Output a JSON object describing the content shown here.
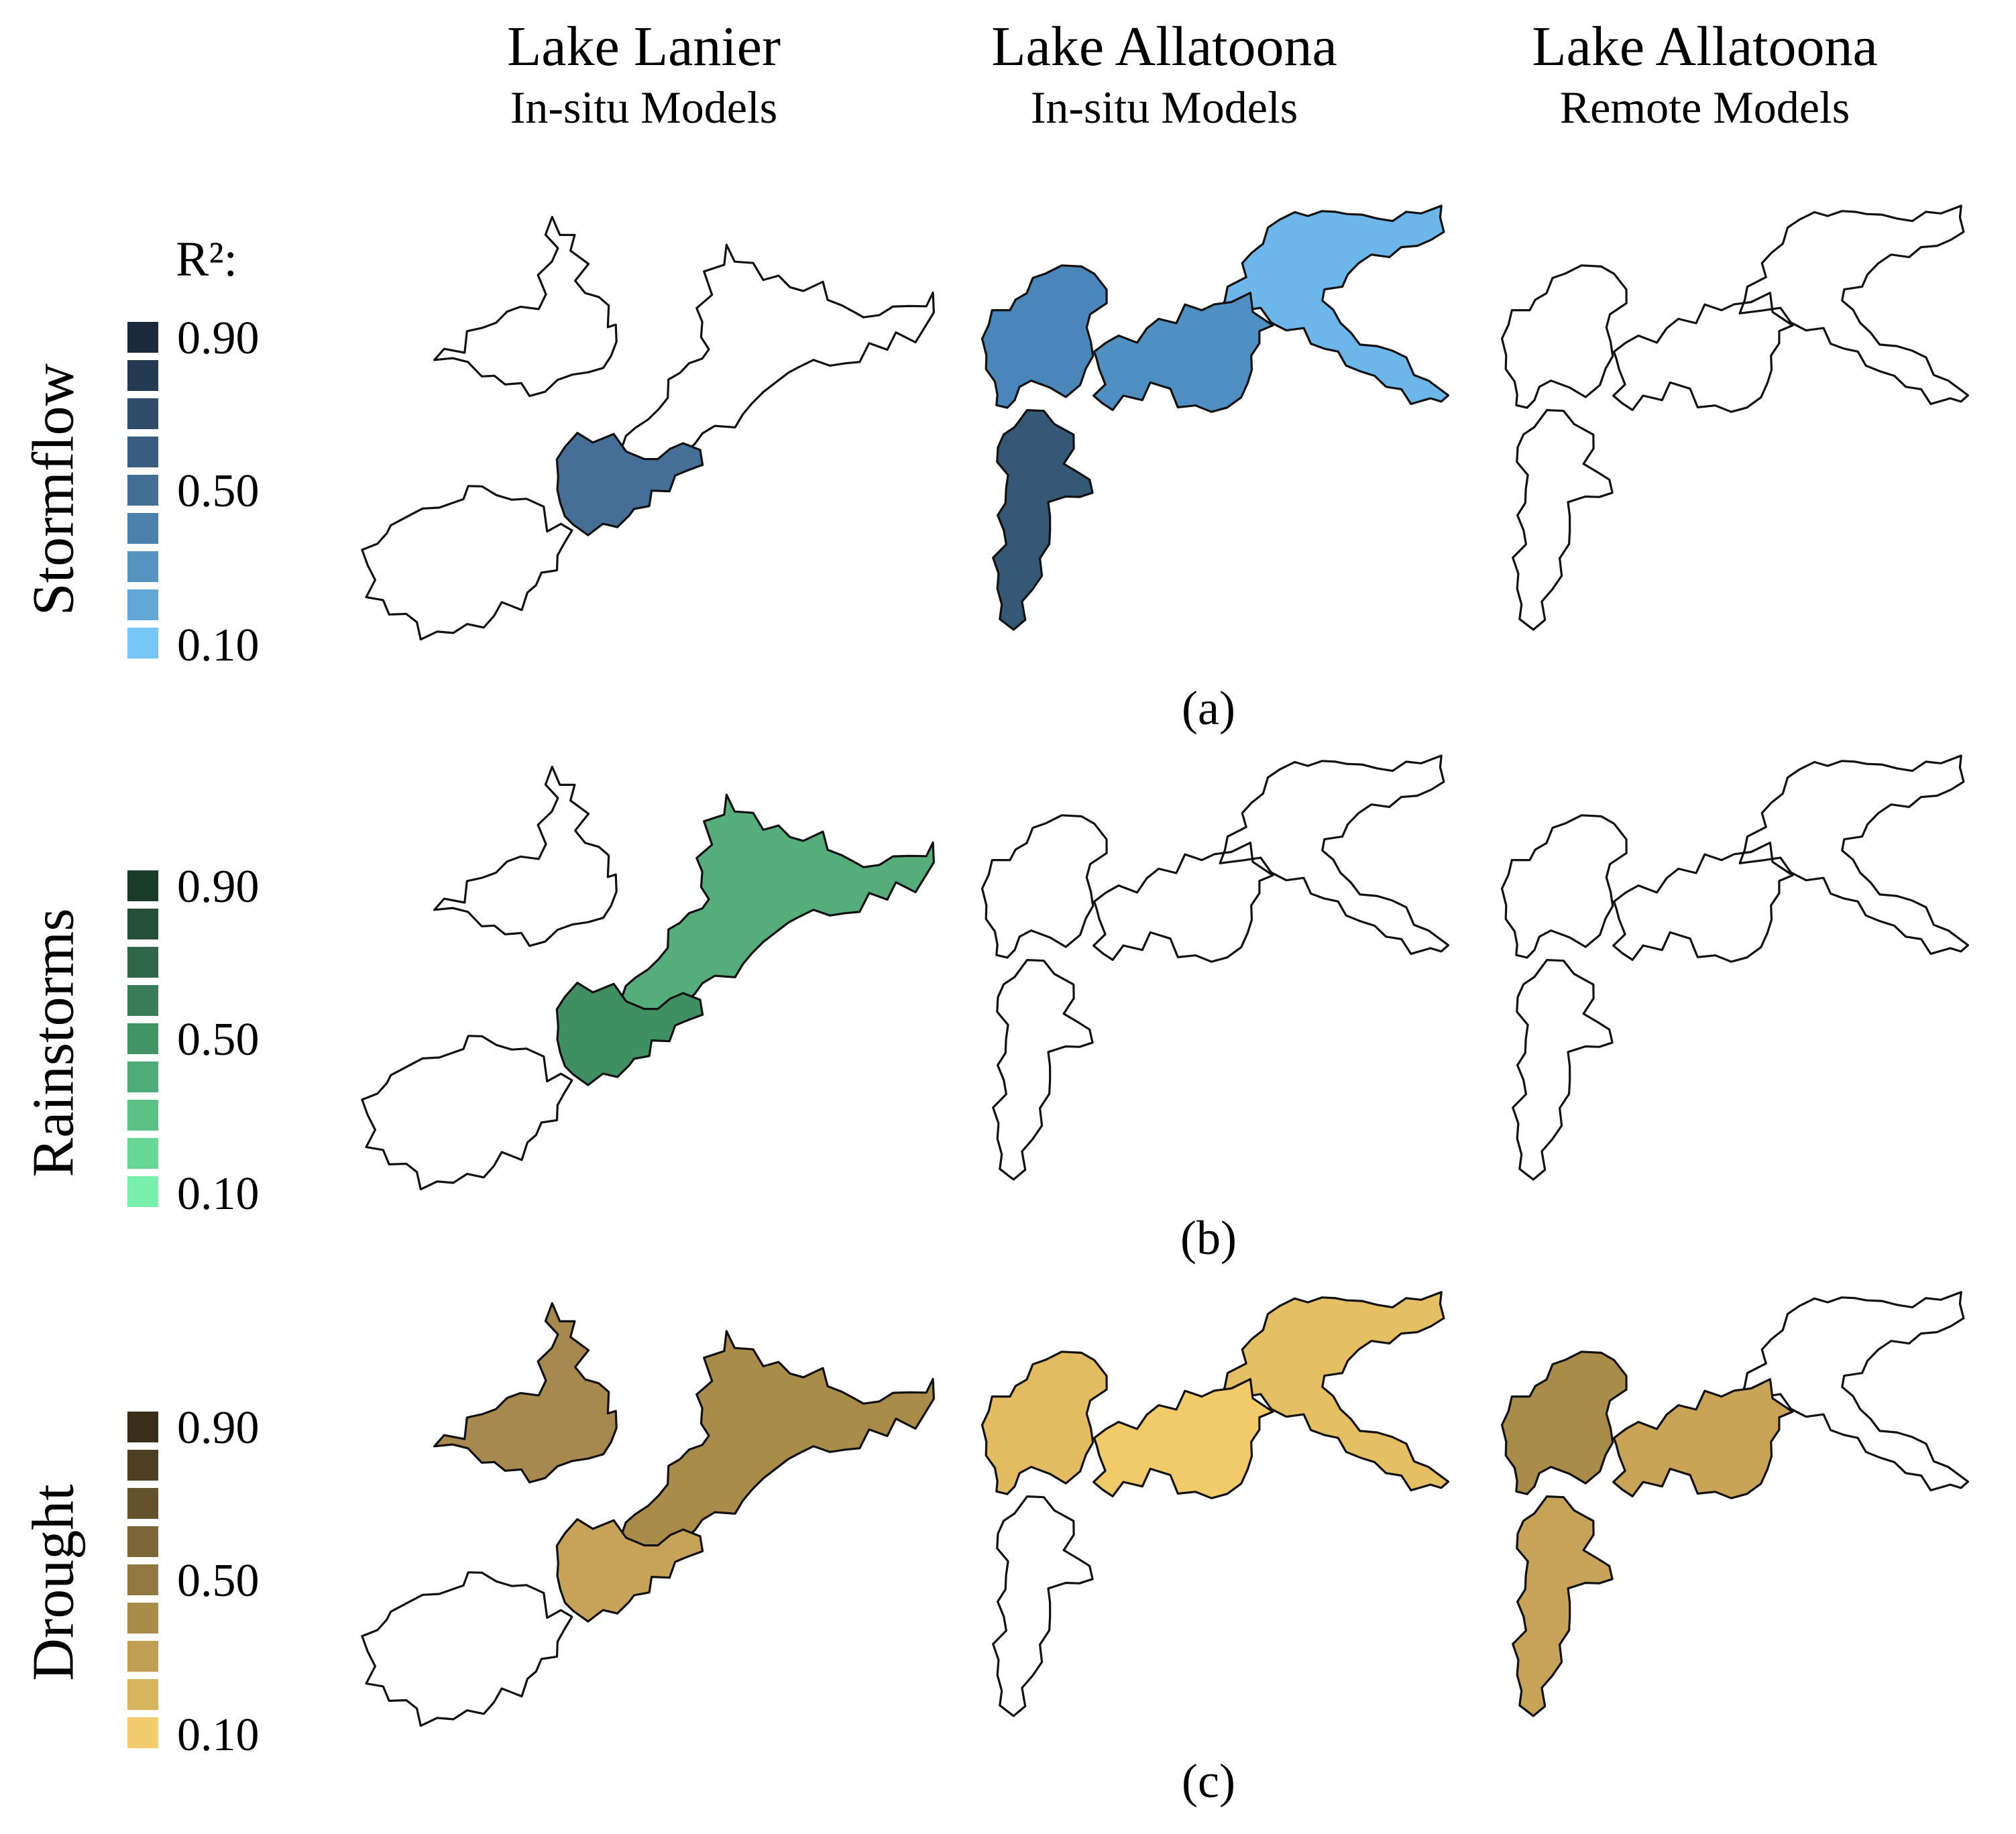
{
  "columns": [
    {
      "title": "Lake Lanier",
      "subtitle": "In-situ Models"
    },
    {
      "title": "Lake Allatoona",
      "subtitle": "In-situ Models"
    },
    {
      "title": "Lake Allatoona",
      "subtitle": "Remote Models"
    }
  ],
  "r2_label": "R²:",
  "rows": [
    {
      "label": "Stormflow",
      "panel_label": "(a)",
      "palette": [
        "#1b2a3a",
        "#243a52",
        "#2e4b69",
        "#385d80",
        "#426f96",
        "#4b81ab",
        "#5693c0",
        "#62a7d6",
        "#77c6f5"
      ],
      "ticks": [
        "0.90",
        "0.50",
        "0.10"
      ],
      "fills": {
        "lanier": {
          "north": "none",
          "middle": "none",
          "south": "#466f98",
          "west": "none"
        },
        "allatoona_insitu": {
          "east": "#6cb6ea",
          "center": "#4f8fc2",
          "west": "#4a86b9",
          "south": "#355877"
        },
        "allatoona_remote": {
          "east": "none",
          "center": "none",
          "west": "none",
          "south": "none"
        }
      }
    },
    {
      "label": "Rainstorms",
      "panel_label": "(b)",
      "palette": [
        "#1a3a2a",
        "#24503a",
        "#2e6649",
        "#387d58",
        "#439566",
        "#4eab76",
        "#5cc185",
        "#68d796",
        "#78f0ac"
      ],
      "ticks": [
        "0.90",
        "0.50",
        "0.10"
      ],
      "fills": {
        "lanier": {
          "north": "none",
          "middle": "#55ad7c",
          "south": "#3f8f63",
          "west": "none"
        },
        "allatoona_insitu": {
          "east": "none",
          "center": "none",
          "west": "none",
          "south": "none"
        },
        "allatoona_remote": {
          "east": "none",
          "center": "none",
          "west": "none",
          "south": "none"
        }
      }
    },
    {
      "label": "Drought",
      "panel_label": "(c)",
      "palette": [
        "#3a2e1a",
        "#4e3f22",
        "#65522c",
        "#7c6536",
        "#927840",
        "#a98b4a",
        "#c09f54",
        "#d8b45e",
        "#f3cc6d"
      ],
      "ticks": [
        "0.90",
        "0.50",
        "0.10"
      ],
      "fills": {
        "lanier": {
          "north": "#a7894f",
          "middle": "#a98b4a",
          "south": "#c7a35a",
          "west": "none"
        },
        "allatoona_insitu": {
          "east": "#e5bf63",
          "center": "#f1ca6a",
          "west": "#e3bc62",
          "south": "none"
        },
        "allatoona_remote": {
          "east": "none",
          "center": "#c9a456",
          "west": "#a98b4a",
          "south": "#c7a35a"
        }
      }
    }
  ]
}
